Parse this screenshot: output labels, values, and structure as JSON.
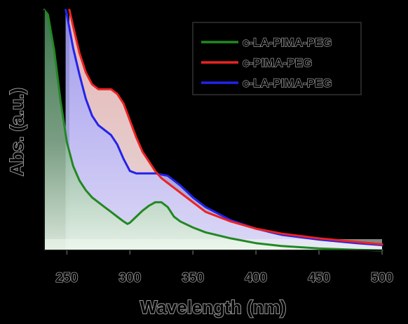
{
  "chart_data": {
    "type": "line",
    "title": "",
    "xlabel": "Wavelength (nm)",
    "ylabel": "Abs. (a.u.)",
    "xlim": [
      232,
      500
    ],
    "ylim": [
      0,
      1.0
    ],
    "xticks": [
      250,
      300,
      350,
      400,
      450,
      500
    ],
    "xtick_labels": [
      "250",
      "300",
      "350",
      "400",
      "450",
      "500"
    ],
    "y_tick_labels_shown": false,
    "grid": false,
    "legend_position": "top-right",
    "series": [
      {
        "name": "c-LA-PIMA-PEG",
        "color": "#228822",
        "fill": "#2e7d3a",
        "x": [
          232,
          235,
          240,
          245,
          250,
          255,
          260,
          265,
          270,
          275,
          280,
          285,
          290,
          295,
          298,
          300,
          305,
          310,
          315,
          320,
          325,
          330,
          335,
          340,
          350,
          360,
          380,
          400,
          420,
          450,
          480,
          500
        ],
        "y": [
          1.0,
          0.98,
          0.83,
          0.62,
          0.45,
          0.35,
          0.29,
          0.25,
          0.22,
          0.2,
          0.18,
          0.16,
          0.14,
          0.12,
          0.11,
          0.115,
          0.14,
          0.165,
          0.185,
          0.2,
          0.2,
          0.18,
          0.14,
          0.12,
          0.095,
          0.075,
          0.05,
          0.03,
          0.018,
          0.008,
          0.002,
          0.0
        ]
      },
      {
        "name": "c-PIMA-PEG",
        "color": "#ee2222",
        "fill": "#ffb0b0",
        "x": [
          252,
          255,
          260,
          265,
          270,
          275,
          280,
          285,
          290,
          295,
          300,
          305,
          310,
          315,
          320,
          325,
          330,
          340,
          350,
          360,
          380,
          400,
          420,
          450,
          480,
          500
        ],
        "y": [
          1.0,
          0.93,
          0.82,
          0.74,
          0.69,
          0.67,
          0.67,
          0.67,
          0.65,
          0.61,
          0.54,
          0.47,
          0.41,
          0.37,
          0.33,
          0.3,
          0.28,
          0.24,
          0.2,
          0.16,
          0.12,
          0.09,
          0.07,
          0.05,
          0.035,
          0.025
        ]
      },
      {
        "name": "c-LA-PIMA-PEG",
        "color": "#2222ee",
        "fill": "#7777ee",
        "x": [
          249,
          250,
          255,
          260,
          265,
          270,
          275,
          280,
          285,
          290,
          295,
          300,
          305,
          310,
          320,
          330,
          340,
          350,
          360,
          380,
          400,
          420,
          450,
          480,
          500
        ],
        "y": [
          1.0,
          0.98,
          0.84,
          0.73,
          0.63,
          0.56,
          0.52,
          0.5,
          0.48,
          0.44,
          0.38,
          0.33,
          0.32,
          0.32,
          0.32,
          0.31,
          0.27,
          0.22,
          0.18,
          0.125,
          0.09,
          0.065,
          0.045,
          0.03,
          0.022
        ]
      }
    ]
  }
}
